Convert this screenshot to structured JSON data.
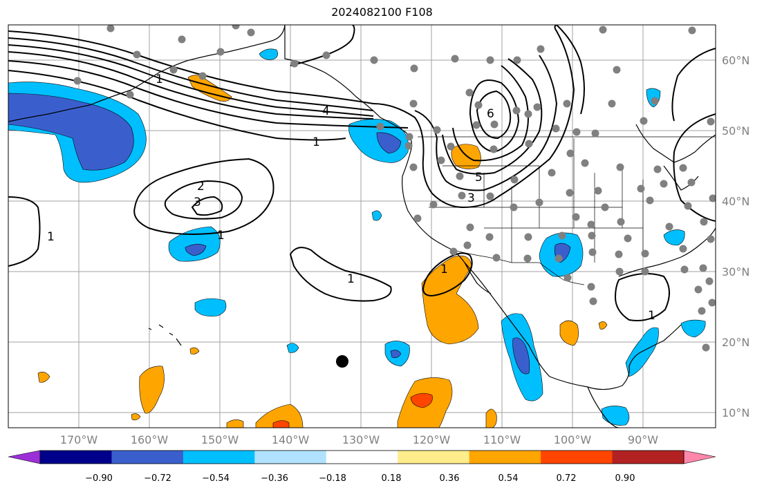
{
  "title": "2024082100 F108",
  "lat_labels": [
    "60°N",
    "50°N",
    "40°N",
    "30°N",
    "20°N",
    "10°N"
  ],
  "lon_labels": [
    "170°W",
    "160°W",
    "150°W",
    "140°W",
    "130°W",
    "120°W",
    "110°W",
    "100°W",
    "90°W"
  ],
  "colorbar": {
    "colors": [
      "#9b30d9",
      "#00008b",
      "#3a5fcd",
      "#00bfff",
      "#b0e2ff",
      "#ffffff",
      "#ffec8b",
      "#ffa500",
      "#ff4500",
      "#b22222",
      "#ff88aa"
    ],
    "tick_labels": [
      "−0.90",
      "−0.72",
      "−0.54",
      "−0.36",
      "−0.18",
      "0.18",
      "0.36",
      "0.54",
      "0.72",
      "0.90"
    ]
  },
  "contour_labels": [
    "4",
    "1",
    "2",
    "3",
    "1",
    "1",
    "1",
    "6",
    "5",
    "3",
    "1",
    "1",
    "1"
  ],
  "colors": {
    "gridline": "#a0a0a0",
    "station": "#808080",
    "marker": "#000000"
  }
}
